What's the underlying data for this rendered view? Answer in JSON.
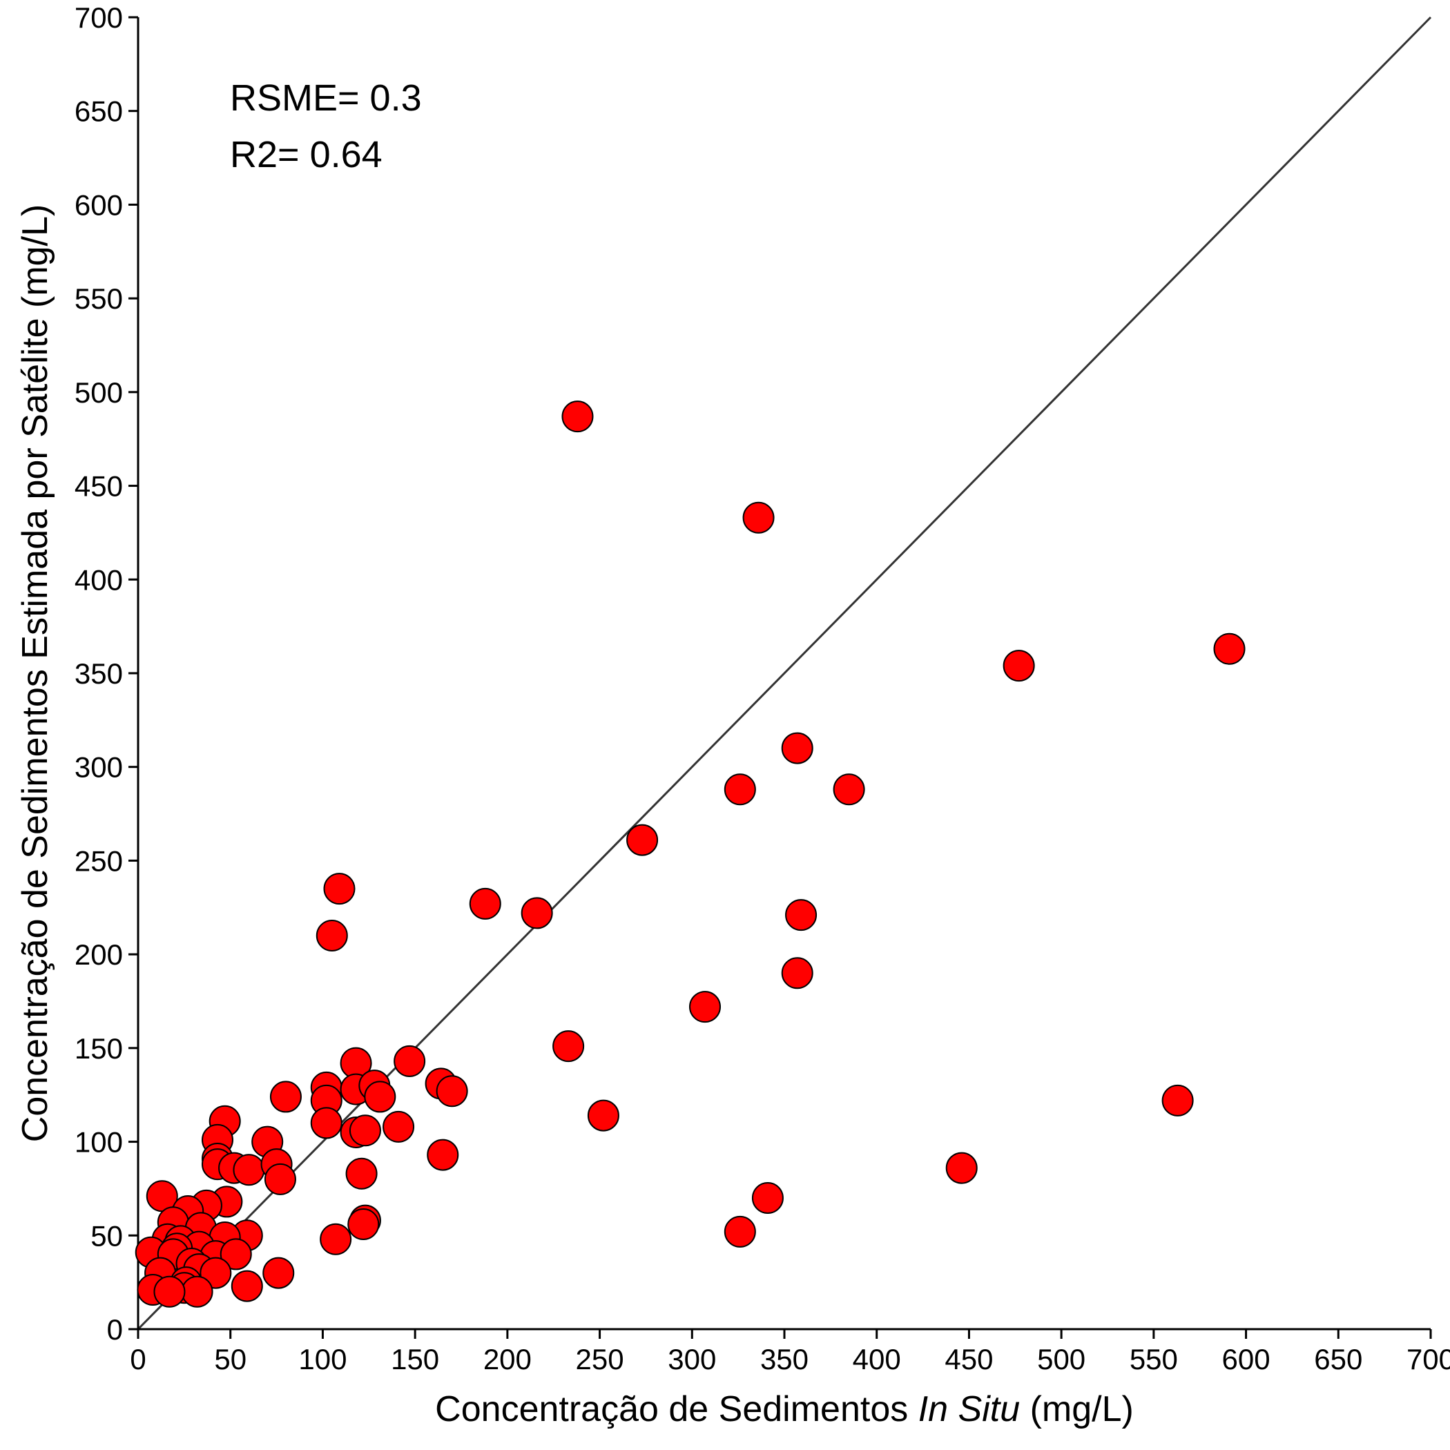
{
  "chart_data": {
    "type": "scatter",
    "title": "",
    "xlabel": {
      "prefix": "Concentração de Sedimentos ",
      "italic": "In Situ",
      "suffix": " (mg/L)"
    },
    "ylabel": "Concentração de Sedimentos Estimada por Satélite (mg/L)",
    "xlim": [
      0,
      700
    ],
    "ylim": [
      0,
      700
    ],
    "xticks": [
      "0",
      "50",
      "100",
      "150",
      "200",
      "250",
      "300",
      "350",
      "400",
      "450",
      "500",
      "550",
      "600",
      "650",
      "700"
    ],
    "yticks": [
      "0",
      "50",
      "100",
      "150",
      "200",
      "250",
      "300",
      "350",
      "400",
      "450",
      "500",
      "550",
      "600",
      "650",
      "700"
    ],
    "grid": false,
    "reference_line": {
      "type": "identity",
      "from": [
        0,
        0
      ],
      "to": [
        700,
        700
      ],
      "color": "#333333"
    },
    "annotations": [
      "RSME= 0.3",
      "R2= 0.64"
    ],
    "marker": {
      "shape": "circle",
      "fill": "#ff0000",
      "stroke": "#000000"
    },
    "points": [
      [
        238,
        487
      ],
      [
        336,
        433
      ],
      [
        591,
        363
      ],
      [
        477,
        354
      ],
      [
        357,
        310
      ],
      [
        326,
        288
      ],
      [
        385,
        288
      ],
      [
        273,
        261
      ],
      [
        109,
        235
      ],
      [
        188,
        227
      ],
      [
        216,
        222
      ],
      [
        359,
        221
      ],
      [
        105,
        210
      ],
      [
        357,
        190
      ],
      [
        307,
        172
      ],
      [
        233,
        151
      ],
      [
        147,
        143
      ],
      [
        118,
        142
      ],
      [
        102,
        129
      ],
      [
        118,
        128
      ],
      [
        128,
        130
      ],
      [
        164,
        131
      ],
      [
        170,
        127
      ],
      [
        80,
        124
      ],
      [
        131,
        124
      ],
      [
        102,
        122
      ],
      [
        563,
        122
      ],
      [
        252,
        114
      ],
      [
        102,
        110
      ],
      [
        47,
        111
      ],
      [
        141,
        108
      ],
      [
        118,
        105
      ],
      [
        123,
        106
      ],
      [
        70,
        100
      ],
      [
        43,
        101
      ],
      [
        43,
        91
      ],
      [
        43,
        88
      ],
      [
        52,
        86
      ],
      [
        60,
        85
      ],
      [
        75,
        88
      ],
      [
        165,
        93
      ],
      [
        446,
        86
      ],
      [
        77,
        80
      ],
      [
        121,
        83
      ],
      [
        13,
        71
      ],
      [
        48,
        68
      ],
      [
        37,
        66
      ],
      [
        27,
        63
      ],
      [
        341,
        70
      ],
      [
        123,
        58
      ],
      [
        122,
        56
      ],
      [
        19,
        57
      ],
      [
        34,
        54
      ],
      [
        59,
        50
      ],
      [
        47,
        49
      ],
      [
        326,
        52
      ],
      [
        107,
        48
      ],
      [
        16,
        48
      ],
      [
        23,
        47
      ],
      [
        33,
        44
      ],
      [
        21,
        43
      ],
      [
        7,
        41
      ],
      [
        42,
        39
      ],
      [
        53,
        40
      ],
      [
        19,
        40
      ],
      [
        29,
        35
      ],
      [
        33,
        32
      ],
      [
        12,
        30
      ],
      [
        42,
        30
      ],
      [
        76,
        30
      ],
      [
        26,
        25
      ],
      [
        59,
        23
      ],
      [
        8,
        21
      ],
      [
        25,
        22
      ],
      [
        32,
        20
      ],
      [
        17,
        20
      ]
    ]
  }
}
